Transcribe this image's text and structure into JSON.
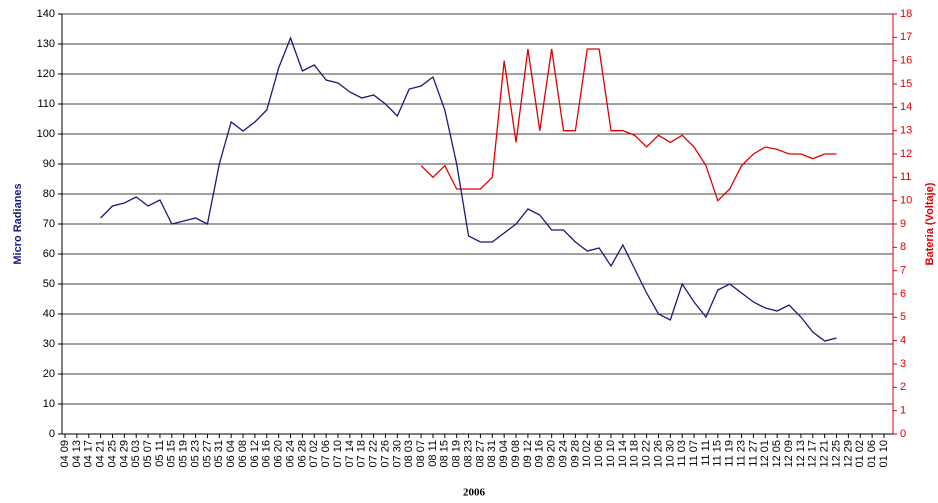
{
  "chart_data": {
    "type": "line",
    "x_label": "2006",
    "y_label": "Micro Radianes",
    "y2_label": "Bateria (Voltaje)",
    "categories": [
      "04 09",
      "04 13",
      "04 17",
      "04 21",
      "04 25",
      "04 29",
      "05 03",
      "05 07",
      "05 11",
      "05 15",
      "05 19",
      "05 23",
      "05 27",
      "05 31",
      "06 04",
      "06 08",
      "06 12",
      "06 16",
      "06 20",
      "06 24",
      "06 28",
      "07 02",
      "07 06",
      "07 10",
      "07 14",
      "07 18",
      "07 22",
      "07 26",
      "07 30",
      "08 03",
      "08 07",
      "08 11",
      "08 15",
      "08 19",
      "08 23",
      "08 27",
      "08 31",
      "09 04",
      "09 08",
      "09 12",
      "09 16",
      "09 20",
      "09 24",
      "09 28",
      "10 02",
      "10 06",
      "10 10",
      "10 14",
      "10 18",
      "10 22",
      "10 26",
      "10 30",
      "11 03",
      "11 07",
      "11 11",
      "11 15",
      "11 19",
      "11 23",
      "11 27",
      "12 01",
      "12 05",
      "12 09",
      "12 13",
      "12 17",
      "12 21",
      "12 25",
      "12 29",
      "01 02",
      "01 06",
      "01 10"
    ],
    "series": [
      {
        "name": "Micro Radianes",
        "color": "#1a1a7a",
        "axis": "y",
        "values": [
          null,
          null,
          null,
          72,
          76,
          77,
          79,
          76,
          78,
          70,
          71,
          72,
          70,
          90,
          104,
          101,
          104,
          108,
          122,
          132,
          121,
          123,
          118,
          117,
          114,
          112,
          113,
          110,
          106,
          115,
          116,
          119,
          108,
          90,
          66,
          64,
          64,
          67,
          70,
          75,
          73,
          68,
          68,
          64,
          61,
          62,
          56,
          63,
          55,
          47,
          40,
          38,
          50,
          44,
          39,
          48,
          50,
          47,
          44,
          42,
          41,
          43,
          39,
          34,
          31,
          32,
          null,
          null,
          null,
          null
        ]
      },
      {
        "name": "Bateria (Voltaje)",
        "color": "#e00000",
        "axis": "y2",
        "values": [
          null,
          null,
          null,
          null,
          null,
          null,
          null,
          null,
          null,
          null,
          null,
          null,
          null,
          null,
          null,
          null,
          null,
          null,
          null,
          null,
          null,
          null,
          null,
          null,
          null,
          null,
          null,
          null,
          null,
          null,
          11.5,
          11,
          11.5,
          10.5,
          10.5,
          10.5,
          11,
          16,
          12.5,
          16.5,
          13,
          16.5,
          13,
          13,
          16.5,
          16.5,
          13,
          13,
          12.8,
          12.3,
          12.8,
          12.5,
          12.8,
          12.3,
          11.5,
          10,
          10.5,
          11.5,
          12,
          12.3,
          12.2,
          12,
          12,
          11.8,
          12,
          12,
          null,
          null,
          null,
          null
        ]
      }
    ],
    "ylim": [
      0,
      140
    ],
    "yticks": [
      0,
      10,
      20,
      30,
      40,
      50,
      60,
      70,
      80,
      90,
      100,
      110,
      120,
      130,
      140
    ],
    "y2lim": [
      0,
      18
    ],
    "y2ticks": [
      0,
      1,
      2,
      3,
      4,
      5,
      6,
      7,
      8,
      9,
      10,
      11,
      12,
      13,
      14,
      15,
      16,
      17,
      18
    ],
    "grid": true
  }
}
